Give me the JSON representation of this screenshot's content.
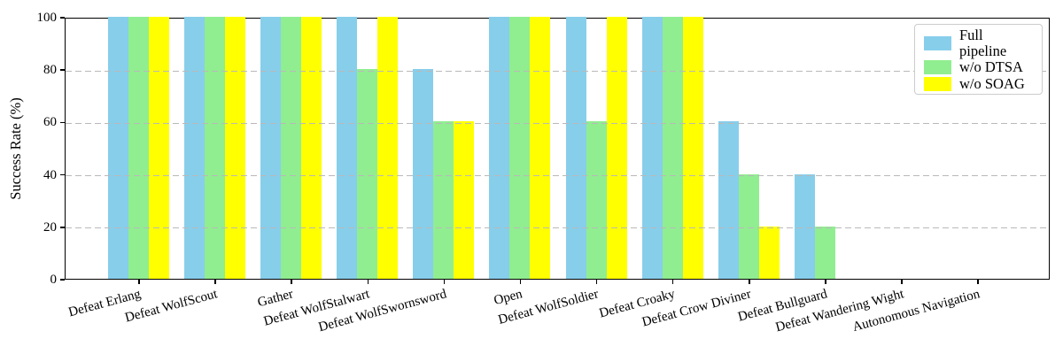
{
  "chart_data": {
    "type": "bar",
    "title": "",
    "xlabel": "",
    "ylabel": "Success Rate (%)",
    "ylim": [
      0,
      100
    ],
    "yticks": [
      0,
      20,
      40,
      60,
      80,
      100
    ],
    "grid": "horizontal dashed gridlines at 20, 40, 60, 80 drawn over bars",
    "legend_position": "upper right",
    "categories": [
      "Defeat Erlang",
      "Defeat WolfScout",
      "Gather",
      "Defeat WolfStalwart",
      "Defeat WolfSwornsword",
      "Open",
      "Defeat WolfSoldier",
      "Defeat Croaky",
      "Defeat Crow Diviner",
      "Defeat Bullguard",
      "Defeat Wandering Wight",
      "Autonomous Navigation"
    ],
    "series": [
      {
        "name": "Full pipeline",
        "color": "#87CEEB",
        "values": [
          100,
          100,
          100,
          100,
          80,
          100,
          100,
          100,
          60,
          40,
          0,
          0
        ]
      },
      {
        "name": "w/o DTSA",
        "color": "#90EE90",
        "values": [
          100,
          100,
          100,
          80,
          60,
          100,
          60,
          100,
          40,
          20,
          0,
          0
        ]
      },
      {
        "name": "w/o SOAG",
        "color": "#FFFF00",
        "values": [
          100,
          100,
          100,
          100,
          60,
          100,
          100,
          100,
          20,
          0,
          0,
          0
        ]
      }
    ]
  },
  "colors": {
    "axis": "#000000",
    "gridline": "#b9b9b9",
    "background": "#ffffff",
    "legend_border": "#cccccc"
  }
}
